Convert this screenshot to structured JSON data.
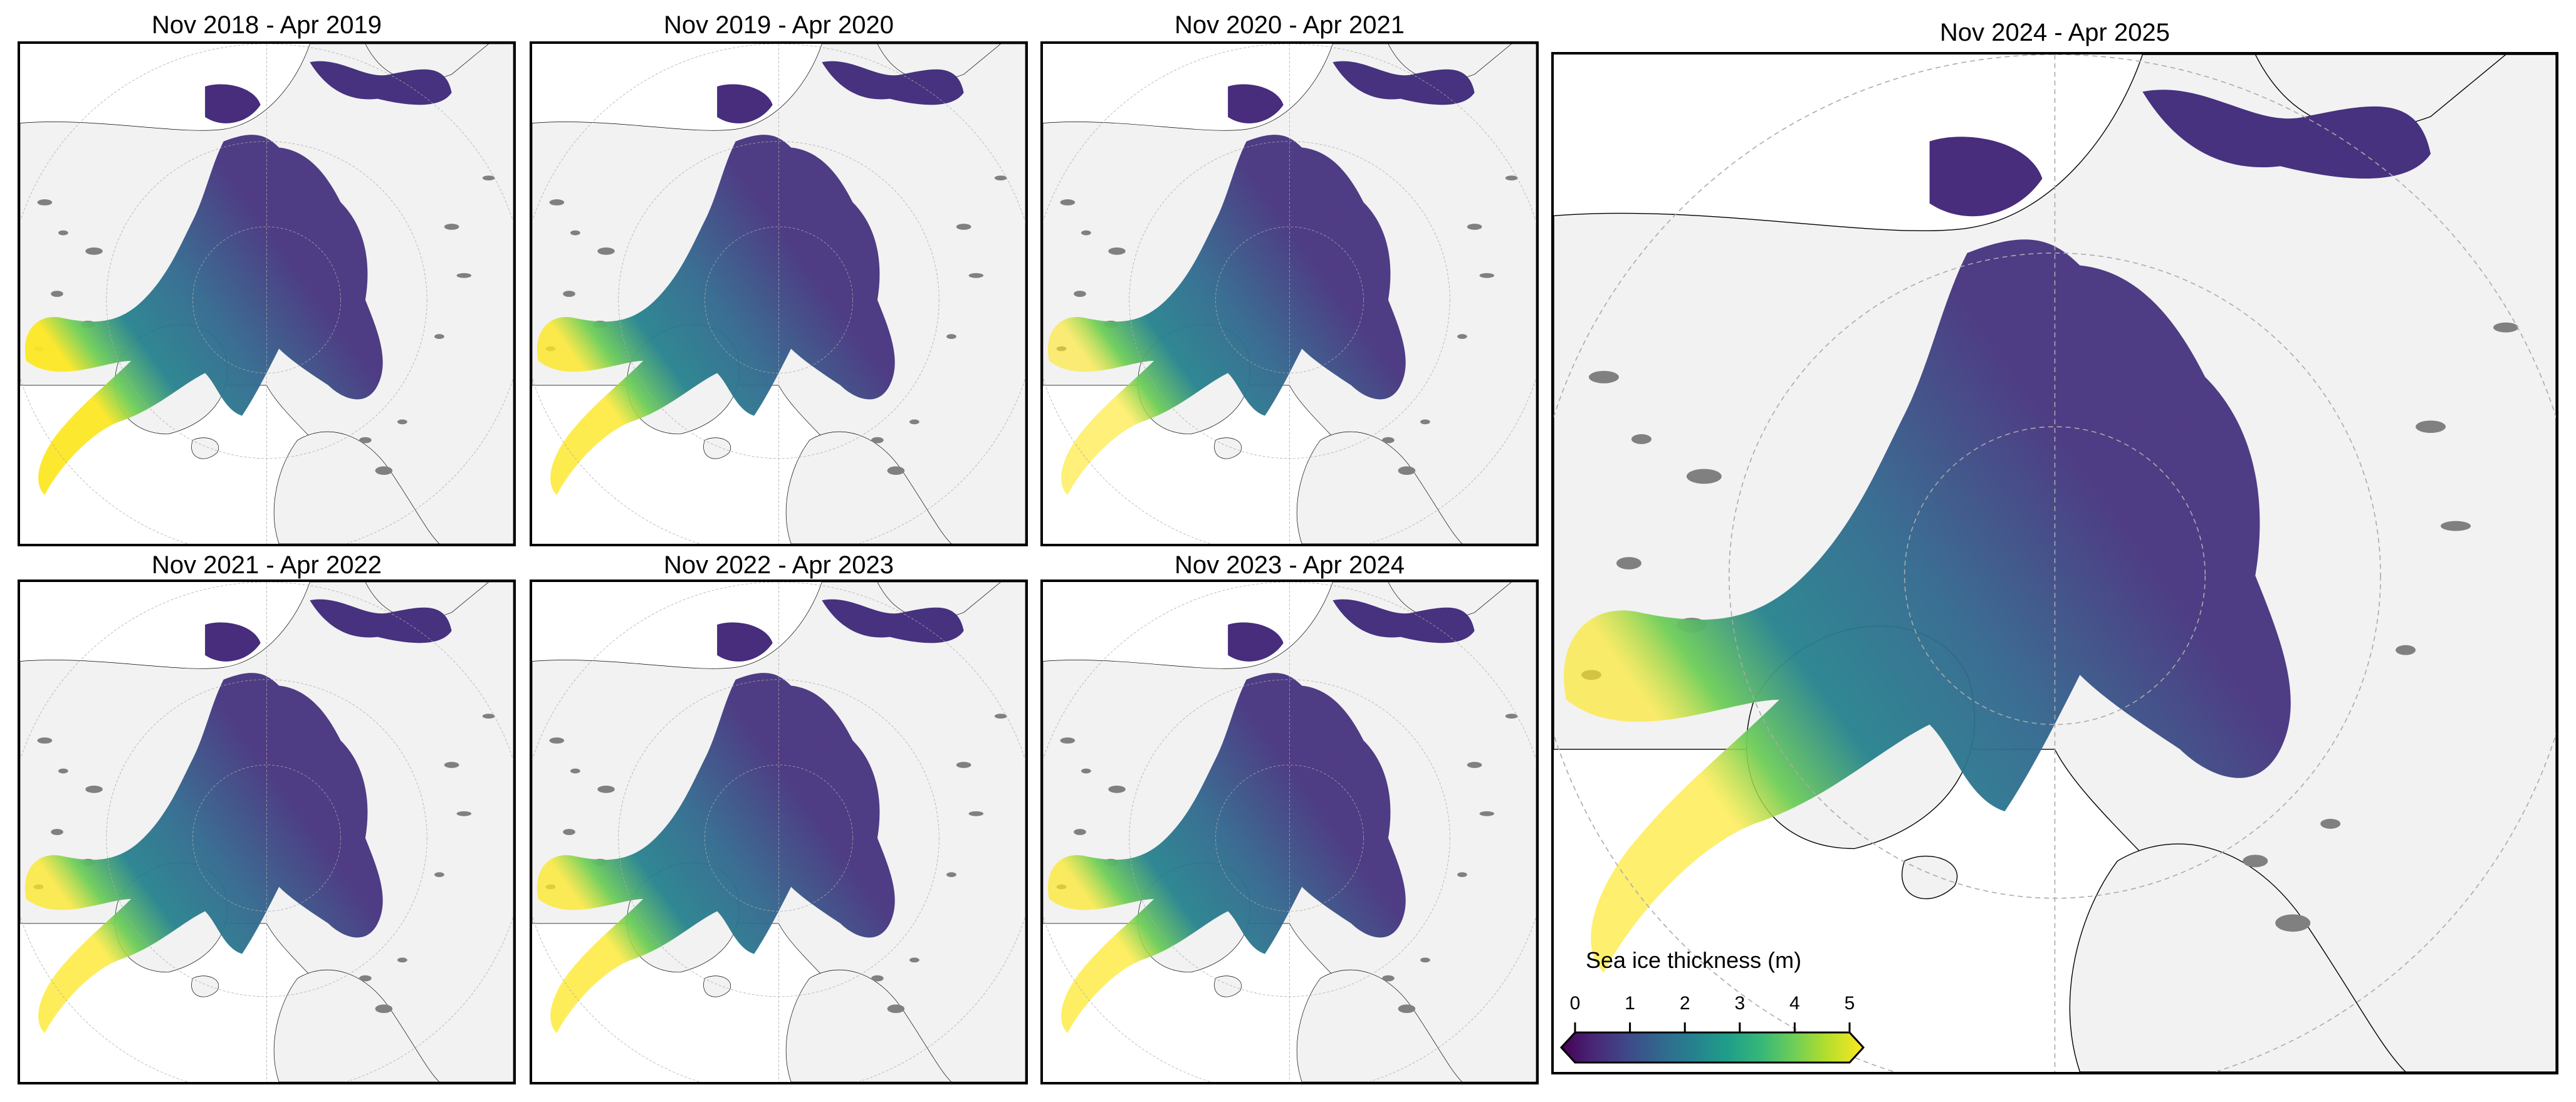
{
  "figure": {
    "panels": [
      {
        "id": "p2019",
        "title": "Nov 2018 - Apr 2019",
        "season_start": "Nov 2018",
        "season_end": "Apr 2019",
        "thick_strength": 1.0
      },
      {
        "id": "p2020",
        "title": "Nov 2019 - Apr 2020",
        "season_start": "Nov 2019",
        "season_end": "Apr 2020",
        "thick_strength": 0.85
      },
      {
        "id": "p2021",
        "title": "Nov 2020 - Apr 2021",
        "season_start": "Nov 2020",
        "season_end": "Apr 2021",
        "thick_strength": 0.65
      },
      {
        "id": "p2022",
        "title": "Nov 2021 - Apr 2022",
        "season_start": "Nov 2021",
        "season_end": "Apr 2022",
        "thick_strength": 0.8
      },
      {
        "id": "p2023",
        "title": "Nov 2022 - Apr 2023",
        "season_start": "Nov 2022",
        "season_end": "Apr 2023",
        "thick_strength": 0.8
      },
      {
        "id": "p2024",
        "title": "Nov 2023 - Apr 2024",
        "season_start": "Nov 2023",
        "season_end": "Apr 2024",
        "thick_strength": 0.75
      },
      {
        "id": "p2025",
        "title": "Nov 2024 - Apr 2025",
        "season_start": "Nov 2024",
        "season_end": "Apr 2025",
        "thick_strength": 0.7,
        "large": true
      }
    ],
    "colorbar": {
      "label": "Sea ice thickness (m)",
      "ticks": [
        "0",
        "1",
        "2",
        "3",
        "4",
        "5"
      ],
      "min": 0,
      "max": 5,
      "extend": "both",
      "colormap": "viridis",
      "stops": [
        "#440154",
        "#482878",
        "#3e4989",
        "#31688e",
        "#26828e",
        "#1f9e89",
        "#35b779",
        "#6ece58",
        "#b5de2b",
        "#fde725"
      ]
    },
    "colors": {
      "land": "#f2f2f2",
      "ocean": "#ffffff",
      "lakes": "#808080",
      "coastline": "#000000",
      "graticule": "#aaaaaa",
      "frame": "#000000"
    }
  }
}
